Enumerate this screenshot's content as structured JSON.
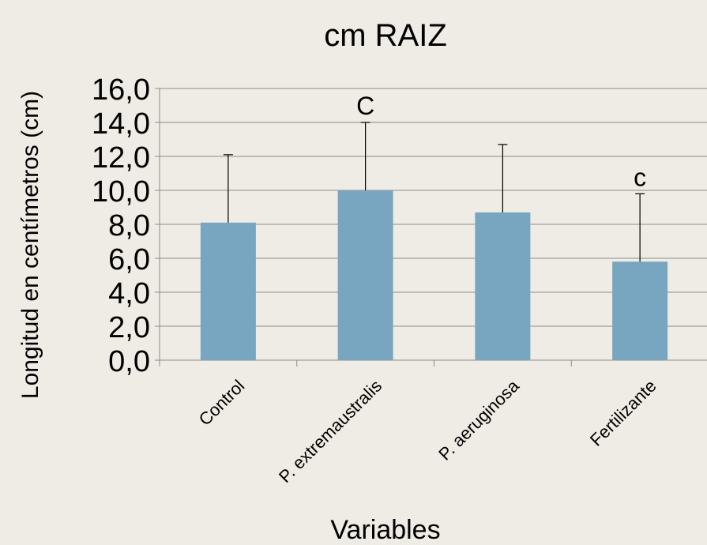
{
  "chart_data": {
    "type": "bar",
    "title": "cm RAIZ",
    "x_label": "Variables",
    "y_label": "Longitud  en centímetros (cm)",
    "categories": [
      "Control",
      "P. extremaustralis",
      "P. aeruginosa",
      "Fertilizante"
    ],
    "values": [
      8.1,
      10.0,
      8.7,
      5.8
    ],
    "errors": [
      4.0,
      4.0,
      4.0,
      4.0
    ],
    "annotations": [
      null,
      "C",
      null,
      "c"
    ],
    "color": "#78a5bf",
    "ylim": [
      0,
      16
    ],
    "yticks": [
      {
        "value": 0,
        "label": "0,0"
      },
      {
        "value": 2,
        "label": "2,0"
      },
      {
        "value": 4,
        "label": "4,0"
      },
      {
        "value": 6,
        "label": "6,0"
      },
      {
        "value": 8,
        "label": "8,0"
      },
      {
        "value": 10,
        "label": "10,0"
      },
      {
        "value": 12,
        "label": "12,0"
      },
      {
        "value": 14,
        "label": "14,0"
      },
      {
        "value": 16,
        "label": "16,0"
      }
    ],
    "grid": true
  }
}
